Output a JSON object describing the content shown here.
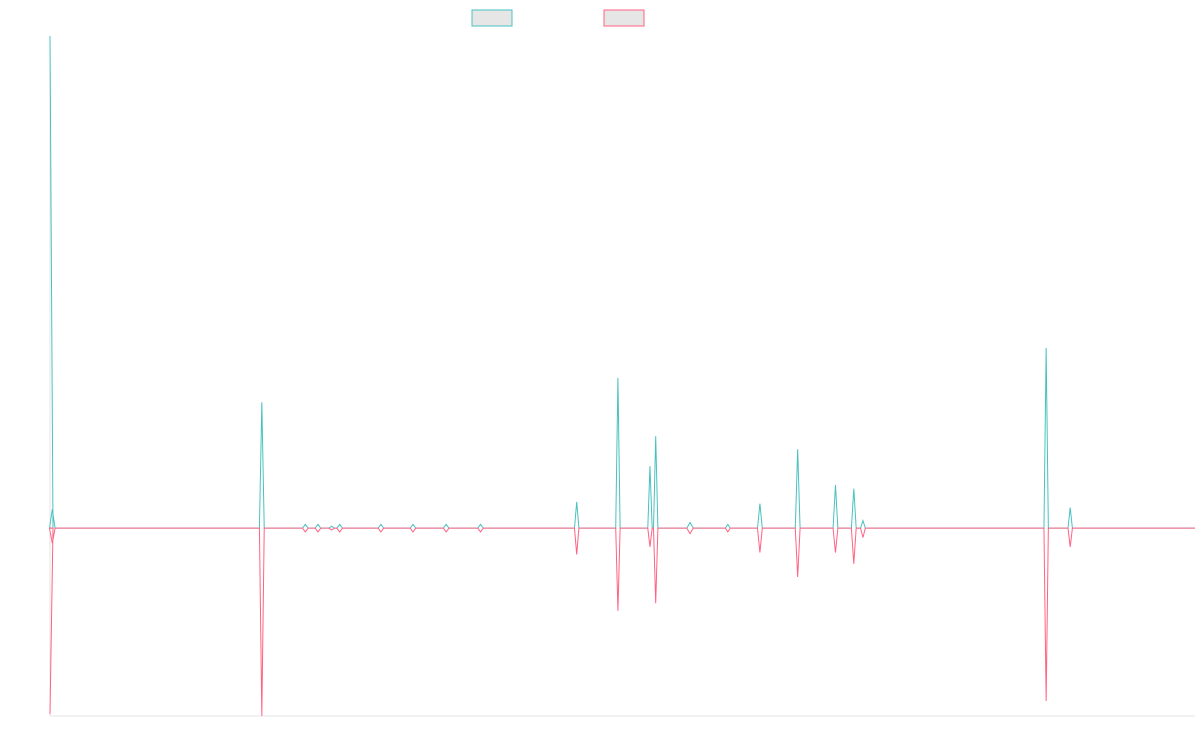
{
  "chart_data": {
    "type": "line",
    "title": "",
    "xlabel": "",
    "ylabel": "",
    "legend": {
      "placement": "top-center"
    },
    "xlim": [
      0,
      1000
    ],
    "ylim": [
      -100,
      262
    ],
    "grid": false,
    "baseline_value": 0,
    "series": [
      {
        "color": "#4bc0c0",
        "fill": "#e6e6e6",
        "values": [
          {
            "x": 0,
            "y": 262
          },
          {
            "x": 2,
            "y": 10
          },
          {
            "x": 185,
            "y": 67
          },
          {
            "x": 223,
            "y": 2
          },
          {
            "x": 234,
            "y": 2
          },
          {
            "x": 246,
            "y": 1
          },
          {
            "x": 253,
            "y": 2
          },
          {
            "x": 289,
            "y": 2
          },
          {
            "x": 317,
            "y": 2
          },
          {
            "x": 346,
            "y": 2
          },
          {
            "x": 376,
            "y": 2
          },
          {
            "x": 460,
            "y": 14
          },
          {
            "x": 496,
            "y": 80
          },
          {
            "x": 524,
            "y": 33
          },
          {
            "x": 529,
            "y": 49
          },
          {
            "x": 559,
            "y": 3
          },
          {
            "x": 592,
            "y": 2
          },
          {
            "x": 620,
            "y": 13
          },
          {
            "x": 653,
            "y": 42
          },
          {
            "x": 686,
            "y": 23
          },
          {
            "x": 702,
            "y": 21
          },
          {
            "x": 710,
            "y": 4
          },
          {
            "x": 870,
            "y": 96
          },
          {
            "x": 891,
            "y": 11
          }
        ]
      },
      {
        "color": "#ff6384",
        "fill": "#e6e6e6",
        "values": [
          {
            "x": 0,
            "y": -99
          },
          {
            "x": 2,
            "y": -8
          },
          {
            "x": 185,
            "y": -100
          },
          {
            "x": 223,
            "y": -2
          },
          {
            "x": 234,
            "y": -2
          },
          {
            "x": 246,
            "y": -1
          },
          {
            "x": 253,
            "y": -2
          },
          {
            "x": 289,
            "y": -2
          },
          {
            "x": 317,
            "y": -2
          },
          {
            "x": 346,
            "y": -2
          },
          {
            "x": 376,
            "y": -2
          },
          {
            "x": 460,
            "y": -14
          },
          {
            "x": 496,
            "y": -44
          },
          {
            "x": 524,
            "y": -10
          },
          {
            "x": 529,
            "y": -40
          },
          {
            "x": 559,
            "y": -3
          },
          {
            "x": 592,
            "y": -2
          },
          {
            "x": 620,
            "y": -13
          },
          {
            "x": 653,
            "y": -26
          },
          {
            "x": 686,
            "y": -13
          },
          {
            "x": 702,
            "y": -19
          },
          {
            "x": 710,
            "y": -5
          },
          {
            "x": 870,
            "y": -92
          },
          {
            "x": 891,
            "y": -10
          }
        ]
      }
    ]
  }
}
